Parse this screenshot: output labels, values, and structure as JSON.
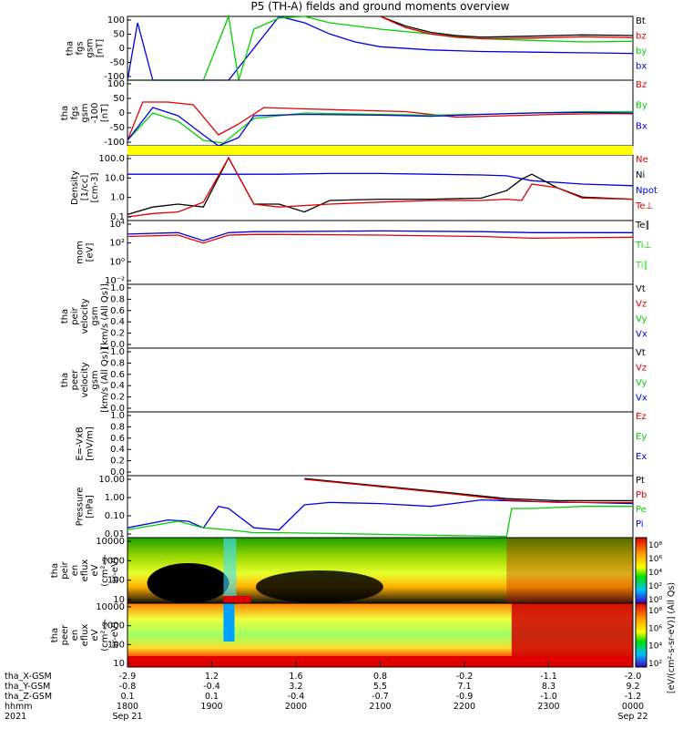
{
  "title": "P5 (TH-A) fields and ground moments overview",
  "colors": {
    "black": "#000000",
    "red": "#e00000",
    "green": "#00d000",
    "blue": "#0000e0",
    "lightgreen": "#33e033",
    "yellow": "#ffff00"
  },
  "chart_data": [
    {
      "type": "line",
      "panel": "fgs",
      "ylabel": [
        "tha",
        "fgs",
        "gsm",
        "[nT]"
      ],
      "yticks": [
        "100",
        "50",
        "0",
        "-50",
        "-100"
      ],
      "ylim": [
        -100,
        100
      ],
      "legend": [
        {
          "name": "Bt",
          "color": "black"
        },
        {
          "name": "bz",
          "color": "red"
        },
        {
          "name": "by",
          "color": "green"
        },
        {
          "name": "bx",
          "color": "blue"
        }
      ],
      "series": [
        {
          "name": "bx",
          "color": "blue",
          "x": [
            0.0,
            0.02,
            0.05,
            0.1,
            0.2,
            0.3,
            0.35,
            0.4,
            0.45,
            0.5,
            0.6,
            0.7,
            0.8,
            0.9,
            1.0
          ],
          "y": [
            -100,
            80,
            -100,
            -100,
            -100,
            100,
            80,
            45,
            20,
            5,
            -5,
            -10,
            -12,
            -14,
            -16
          ]
        },
        {
          "name": "by",
          "color": "green",
          "x": [
            0.0,
            0.15,
            0.2,
            0.22,
            0.25,
            0.3,
            0.35,
            0.4,
            0.5,
            0.6,
            0.7,
            0.8,
            0.9,
            1.0
          ],
          "y": [
            -100,
            -100,
            100,
            -100,
            60,
            95,
            100,
            80,
            60,
            45,
            30,
            25,
            20,
            22
          ]
        },
        {
          "name": "Bt",
          "color": "black",
          "x": [
            0.5,
            0.55,
            0.6,
            0.65,
            0.7,
            0.8,
            0.9,
            1.0
          ],
          "y": [
            100,
            70,
            50,
            40,
            35,
            38,
            42,
            40
          ]
        },
        {
          "name": "bz",
          "color": "red",
          "x": [
            0.5,
            0.55,
            0.6,
            0.65,
            0.7,
            0.8,
            0.9,
            1.0
          ],
          "y": [
            100,
            65,
            45,
            35,
            30,
            32,
            36,
            33
          ]
        }
      ]
    },
    {
      "type": "line",
      "panel": "fgs-zoom",
      "ylabel": [
        "tha",
        "fgs",
        "gsm",
        "-100",
        "[nT]"
      ],
      "yticks": [
        "100",
        "50",
        "0",
        "-50",
        "-100"
      ],
      "ylim": [
        -120,
        120
      ],
      "legend": [
        {
          "name": "Bz",
          "color": "red"
        },
        {
          "name": "By",
          "color": "green"
        },
        {
          "name": "Bx",
          "color": "blue"
        }
      ],
      "series": [
        {
          "name": "Bz",
          "color": "red",
          "x": [
            0.0,
            0.03,
            0.08,
            0.13,
            0.18,
            0.22,
            0.27,
            0.35,
            0.45,
            0.55,
            0.65,
            0.75,
            0.85,
            0.95,
            1.0
          ],
          "y": [
            -100,
            40,
            40,
            30,
            -80,
            -40,
            20,
            15,
            10,
            5,
            -15,
            -10,
            -5,
            -2,
            -3
          ]
        },
        {
          "name": "By",
          "color": "green",
          "x": [
            0.0,
            0.05,
            0.1,
            0.15,
            0.19,
            0.25,
            0.35,
            0.5,
            0.6,
            0.7,
            0.8,
            0.9,
            1.0
          ],
          "y": [
            -100,
            0,
            -30,
            -100,
            -110,
            -20,
            0,
            -5,
            -8,
            -5,
            0,
            5,
            5
          ]
        },
        {
          "name": "Bx",
          "color": "blue",
          "x": [
            0.0,
            0.05,
            0.1,
            0.15,
            0.18,
            0.22,
            0.25,
            0.35,
            0.5,
            0.6,
            0.7,
            0.8,
            0.9,
            1.0
          ],
          "y": [
            -100,
            20,
            -10,
            -80,
            -120,
            -90,
            -10,
            -5,
            -8,
            -12,
            -5,
            0,
            2,
            0
          ]
        }
      ]
    },
    {
      "type": "line",
      "panel": "density",
      "log": true,
      "ylabel": [
        "Density",
        "[1/cc]",
        "[cm-3]"
      ],
      "yticks": [
        "100.0",
        "10.0",
        "1.0",
        "0.1"
      ],
      "ylim": [
        0.03,
        300
      ],
      "legend": [
        {
          "name": "Ne",
          "color": "red"
        },
        {
          "name": "Ni",
          "color": "black"
        },
        {
          "name": "Npot",
          "color": "blue"
        },
        {
          "name": "Te⊥",
          "color": "red"
        }
      ],
      "series": [
        {
          "name": "Npot",
          "color": "blue",
          "x": [
            0.0,
            0.1,
            0.2,
            0.3,
            0.4,
            0.5,
            0.6,
            0.7,
            0.75,
            0.8,
            0.9,
            1.0
          ],
          "y": [
            20,
            20,
            20,
            20,
            22,
            22,
            20,
            18,
            16,
            8,
            5,
            4
          ]
        },
        {
          "name": "Ni",
          "color": "black",
          "x": [
            0.0,
            0.05,
            0.1,
            0.15,
            0.2,
            0.25,
            0.3,
            0.35,
            0.4,
            0.5,
            0.6,
            0.7,
            0.75,
            0.78,
            0.8,
            0.85,
            0.9,
            1.0
          ],
          "y": [
            0.07,
            0.2,
            0.3,
            0.2,
            200,
            0.3,
            0.3,
            0.1,
            0.5,
            0.6,
            0.6,
            0.7,
            2,
            10,
            20,
            3,
            0.8,
            0.6
          ]
        },
        {
          "name": "Ne",
          "color": "red",
          "x": [
            0.0,
            0.05,
            0.1,
            0.15,
            0.2,
            0.25,
            0.3,
            0.4,
            0.5,
            0.6,
            0.7,
            0.75,
            0.78,
            0.8,
            0.85,
            0.9,
            1.0
          ],
          "y": [
            0.05,
            0.08,
            0.1,
            0.4,
            200,
            0.3,
            0.2,
            0.3,
            0.4,
            0.5,
            0.5,
            0.6,
            0.5,
            5,
            3,
            0.7,
            0.6
          ]
        }
      ]
    },
    {
      "type": "line",
      "panel": "temperature",
      "log": true,
      "ylabel": [
        "mom",
        "[eV]"
      ],
      "yticks": [
        "10⁴",
        "10²",
        "10⁰",
        "10⁻²"
      ],
      "ylim": [
        0.001,
        100000
      ],
      "legend": [
        {
          "name": "Te∥",
          "color": "black"
        },
        {
          "name": "Ti⊥",
          "color": "green"
        },
        {
          "name": "Ti∥",
          "color": "lightgreen"
        }
      ],
      "series": [
        {
          "name": "Ti",
          "color": "blue",
          "x": [
            0.0,
            0.1,
            0.15,
            0.2,
            0.25,
            0.3,
            0.5,
            0.7,
            0.8,
            1.0
          ],
          "y": [
            2000,
            3000,
            300,
            3000,
            4000,
            4000,
            5000,
            4000,
            3000,
            3000
          ]
        },
        {
          "name": "Te",
          "color": "red",
          "x": [
            0.0,
            0.1,
            0.15,
            0.2,
            0.25,
            0.3,
            0.5,
            0.7,
            0.8,
            1.0
          ],
          "y": [
            1000,
            1500,
            150,
            1500,
            1800,
            1800,
            1500,
            1000,
            600,
            800
          ]
        }
      ]
    },
    {
      "type": "line",
      "panel": "peir-velocity",
      "ylabel": [
        "tha",
        "peir",
        "velocity",
        "gsm",
        "[km/s (All Qs)]"
      ],
      "yticks": [
        "1.0",
        "0.8",
        "0.6",
        "0.4",
        "0.2",
        "0.0"
      ],
      "ylim": [
        0,
        1
      ],
      "legend": [
        {
          "name": "Vt",
          "color": "black"
        },
        {
          "name": "Vz",
          "color": "red"
        },
        {
          "name": "Vy",
          "color": "green"
        },
        {
          "name": "Vx",
          "color": "blue"
        }
      ],
      "series": []
    },
    {
      "type": "line",
      "panel": "peer-velocity",
      "ylabel": [
        "tha",
        "peer",
        "velocity",
        "gsm",
        "[km/s (All Qs)]"
      ],
      "yticks": [
        "1.0",
        "0.8",
        "0.6",
        "0.4",
        "0.2",
        "0.0"
      ],
      "ylim": [
        0,
        1
      ],
      "legend": [
        {
          "name": "Vt",
          "color": "black"
        },
        {
          "name": "Vz",
          "color": "red"
        },
        {
          "name": "Vy",
          "color": "green"
        },
        {
          "name": "Vx",
          "color": "blue"
        }
      ],
      "series": []
    },
    {
      "type": "line",
      "panel": "efield",
      "ylabel": [
        "E=-VxB",
        "[mV/m]"
      ],
      "yticks": [
        "1.0",
        "0.8",
        "0.6",
        "0.4",
        "0.2",
        "0.0"
      ],
      "ylim": [
        0,
        1
      ],
      "legend": [
        {
          "name": "Ez",
          "color": "red"
        },
        {
          "name": "Ey",
          "color": "green"
        },
        {
          "name": "Ex",
          "color": "blue"
        }
      ],
      "series": []
    },
    {
      "type": "line",
      "panel": "pressure",
      "log": true,
      "ylabel": [
        "Pressure",
        "[nPa]"
      ],
      "yticks": [
        "10.00",
        "1.00",
        "0.10",
        "0.01"
      ],
      "ylim": [
        0.005,
        30
      ],
      "legend": [
        {
          "name": "Pt",
          "color": "black"
        },
        {
          "name": "Pb",
          "color": "red"
        },
        {
          "name": "Pe",
          "color": "green"
        },
        {
          "name": "Pi",
          "color": "blue"
        }
      ],
      "series": [
        {
          "name": "Pi",
          "color": "blue",
          "x": [
            0.0,
            0.08,
            0.12,
            0.15,
            0.18,
            0.2,
            0.25,
            0.3,
            0.35,
            0.4,
            0.5,
            0.6,
            0.7,
            0.8,
            0.9,
            1.0
          ],
          "y": [
            0.02,
            0.06,
            0.05,
            0.02,
            0.4,
            0.3,
            0.02,
            0.015,
            0.5,
            0.7,
            0.6,
            0.4,
            1.0,
            0.8,
            0.7,
            0.6
          ]
        },
        {
          "name": "Pe",
          "color": "green",
          "x": [
            0.0,
            0.1,
            0.15,
            0.2,
            0.25,
            0.3,
            0.4,
            0.6,
            0.75,
            0.76,
            0.8,
            0.9,
            1.0
          ],
          "y": [
            0.015,
            0.05,
            0.02,
            0.015,
            0.01,
            0.01,
            0.009,
            0.007,
            0.006,
            0.3,
            0.3,
            0.4,
            0.4
          ]
        },
        {
          "name": "Pt",
          "color": "black",
          "x": [
            0.35,
            0.45,
            0.55,
            0.65,
            0.75,
            0.85,
            1.0
          ],
          "y": [
            20,
            10,
            5,
            2.5,
            1.2,
            0.9,
            0.9
          ]
        },
        {
          "name": "Pb",
          "color": "red",
          "x": [
            0.35,
            0.45,
            0.55,
            0.65,
            0.75,
            0.85,
            1.0
          ],
          "y": [
            18,
            9,
            4.5,
            2.2,
            1.0,
            0.7,
            0.7
          ]
        }
      ]
    },
    {
      "type": "heatmap",
      "panel": "peir-spectrogram",
      "ylabel": [
        "tha",
        "peir",
        "en",
        "eflux",
        "eV",
        "(cm²-s-",
        "sr-eV)"
      ],
      "yticks": [
        "10000",
        "1000",
        "100",
        "10"
      ],
      "colorbar_ticks": [
        "10⁸",
        "10⁶",
        "10⁴",
        "10²",
        "10⁰"
      ],
      "colorbar_label": "[eV/(cm²-s-sr-eV)] (All Qs)"
    },
    {
      "type": "heatmap",
      "panel": "peer-spectrogram",
      "ylabel": [
        "tha",
        "peer",
        "en",
        "eflux",
        "eV",
        "(cm²-s-",
        "sr-eV)"
      ],
      "yticks": [
        "10000",
        "1000",
        "100",
        "10"
      ],
      "colorbar_ticks": [
        "10⁸",
        "10⁶",
        "10⁴",
        "10²"
      ],
      "colorbar_label": "[eV/(cm²-s-sr-eV)]"
    }
  ],
  "xaxis": {
    "rows": [
      {
        "label": "tha_X-GSM",
        "values": [
          "-2.9",
          "1.2",
          "1.6",
          "0.8",
          "-0.2",
          "-1.1",
          "-2.0"
        ]
      },
      {
        "label": "tha_Y-GSM",
        "values": [
          "-0.8",
          "-0.4",
          "3.2",
          "5.5",
          "7.1",
          "8.3",
          "9.2"
        ]
      },
      {
        "label": "tha_Z-GSM",
        "values": [
          "0.1",
          "0.1",
          "-0.4",
          "-0.7",
          "-0.9",
          "-1.0",
          "-1.2"
        ]
      },
      {
        "label": "hhmm",
        "values": [
          "1800",
          "1900",
          "2000",
          "2100",
          "2200",
          "2300",
          "0000"
        ]
      },
      {
        "label": "2021",
        "values": [
          "Sep 21",
          "",
          "",
          "",
          "",
          "",
          "Sep 22"
        ]
      }
    ]
  }
}
